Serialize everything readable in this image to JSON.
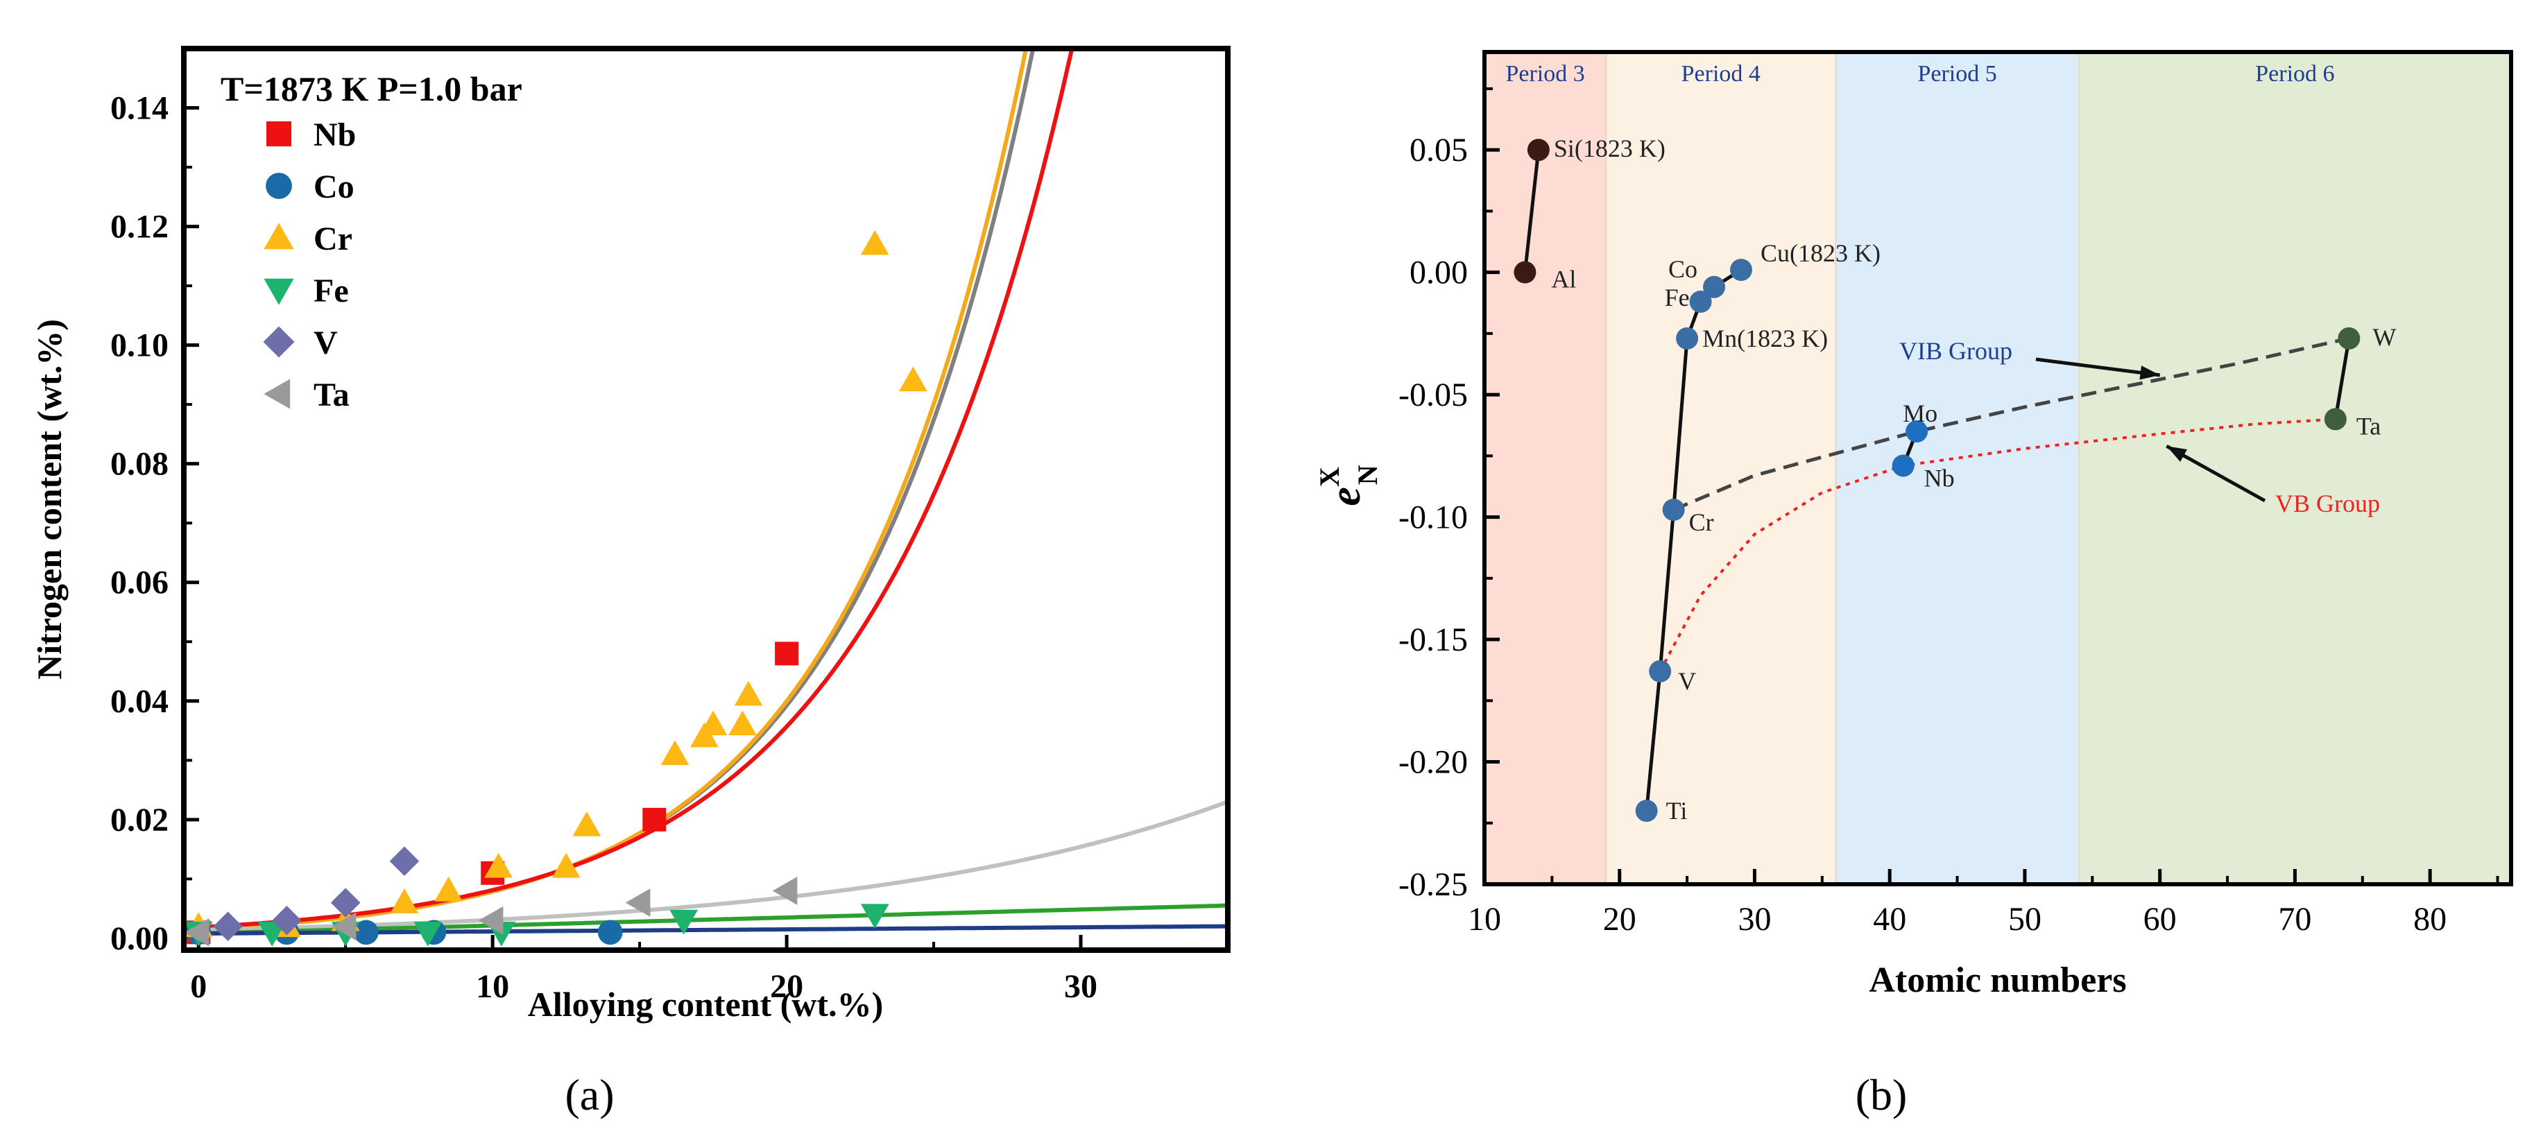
{
  "chart_data": [
    {
      "panel_label": "(a)",
      "type": "scatter",
      "title": "T=1873 K P=1.0 bar",
      "xlabel": "Alloying content (wt.%)",
      "ylabel": "Nitrogen content (wt.%)",
      "xlim": [
        -0.5,
        35
      ],
      "ylim": [
        -0.002,
        0.15
      ],
      "xticks": [
        "0",
        "10",
        "20",
        "30"
      ],
      "yticks": [
        "0.00",
        "0.02",
        "0.04",
        "0.06",
        "0.08",
        "0.10",
        "0.12",
        "0.14"
      ],
      "legend_position": "top-left",
      "series": [
        {
          "name": "Nb",
          "marker": "square",
          "color": "#ee1111",
          "x": [
            0,
            10,
            15.5,
            20
          ],
          "y": [
            0.001,
            0.011,
            0.02,
            0.048
          ]
        },
        {
          "name": "Co",
          "marker": "circle",
          "color": "#1a6aa8",
          "x": [
            0,
            3,
            5.7,
            8,
            14
          ],
          "y": [
            0.001,
            0.001,
            0.001,
            0.001,
            0.001
          ]
        },
        {
          "name": "Cr",
          "marker": "triangle-up",
          "color": "#fdb813",
          "x": [
            0,
            3,
            5,
            7,
            8.5,
            10.2,
            12.5,
            13.2,
            16.2,
            17.2,
            17.5,
            18.5,
            18.7,
            23,
            24.3
          ],
          "y": [
            0.002,
            0.002,
            0.003,
            0.006,
            0.008,
            0.012,
            0.012,
            0.019,
            0.031,
            0.034,
            0.036,
            0.036,
            0.041,
            0.117,
            0.094
          ]
        },
        {
          "name": "Fe",
          "marker": "triangle-down",
          "color": "#1db36f",
          "x": [
            0,
            2.5,
            5,
            7.8,
            10.3,
            16.5,
            23
          ],
          "y": [
            0.001,
            0.001,
            0.001,
            0.001,
            0.001,
            0.003,
            0.004
          ]
        },
        {
          "name": "V",
          "marker": "diamond",
          "color": "#6e6eaa",
          "x": [
            1,
            3,
            5,
            7
          ],
          "y": [
            0.002,
            0.003,
            0.006,
            0.013
          ]
        },
        {
          "name": "Ta",
          "marker": "triangle-left",
          "color": "#9a9a9a",
          "x": [
            0,
            5,
            10,
            15,
            20
          ],
          "y": [
            0.001,
            0.002,
            0.003,
            0.006,
            0.008
          ]
        }
      ],
      "fit_curves": [
        {
          "color": "#808080",
          "formula": "exp",
          "a": 0.0016,
          "b": 0.16
        },
        {
          "color": "#f4a91a",
          "formula": "exp",
          "a": 0.00155,
          "b": 0.1625
        },
        {
          "color": "#ee1111",
          "formula": "exp",
          "a": 0.00185,
          "b": 0.148
        },
        {
          "color": "#c0c0c0",
          "formula": "exp",
          "a": 0.0014,
          "b": 0.08
        },
        {
          "color": "#2ca02c",
          "formula": "lin",
          "a": 0.0008,
          "b": 0.000135
        },
        {
          "color": "#1f3c88",
          "formula": "lin",
          "a": 0.0008,
          "b": 3.5e-05
        }
      ]
    },
    {
      "panel_label": "(b)",
      "type": "scatter",
      "xlabel": "Atomic numbers",
      "ylabel_main": "e",
      "ylabel_sup": "X",
      "ylabel_sub": "N",
      "xlim": [
        10,
        86
      ],
      "ylim": [
        -0.25,
        0.09
      ],
      "xticks": [
        "10",
        "20",
        "30",
        "40",
        "50",
        "60",
        "70",
        "80"
      ],
      "yticks": [
        "0.05",
        "0.00",
        "-0.05",
        "-0.10",
        "-0.15",
        "-0.20",
        "-0.25"
      ],
      "period_bands": [
        {
          "label": "Period 3",
          "x0": 10,
          "x1": 19,
          "color": "#fcdcd3"
        },
        {
          "label": "Period 4",
          "x0": 19,
          "x1": 36,
          "color": "#fdf1e4"
        },
        {
          "label": "Period 5",
          "x0": 36,
          "x1": 54,
          "color": "#dcecf8"
        },
        {
          "label": "Period 6",
          "x0": 54,
          "x1": 86,
          "color": "#e2ecd5"
        }
      ],
      "points": [
        {
          "label": "Si(1823 K)",
          "x": 14,
          "y": 0.05,
          "color": "#3a1a14"
        },
        {
          "label": "Al",
          "x": 13,
          "y": 0.0,
          "color": "#3a1a14"
        },
        {
          "label": "Cu(1823 K)",
          "x": 29,
          "y": 0.001,
          "color": "#3b6ea5"
        },
        {
          "label": "Co",
          "x": 27,
          "y": -0.006,
          "color": "#3b6ea5"
        },
        {
          "label": "Fe",
          "x": 26,
          "y": -0.012,
          "color": "#3b6ea5"
        },
        {
          "label": "Mn(1823 K)",
          "x": 25,
          "y": -0.027,
          "color": "#3b6ea5"
        },
        {
          "label": "Cr",
          "x": 24,
          "y": -0.097,
          "color": "#3b6ea5"
        },
        {
          "label": "V",
          "x": 23,
          "y": -0.163,
          "color": "#3b6ea5"
        },
        {
          "label": "Ti",
          "x": 22,
          "y": -0.22,
          "color": "#3b6ea5"
        },
        {
          "label": "Mo",
          "x": 42,
          "y": -0.065,
          "color": "#1f6fc0"
        },
        {
          "label": "Nb",
          "x": 41,
          "y": -0.079,
          "color": "#1f6fc0"
        },
        {
          "label": "W",
          "x": 74,
          "y": -0.027,
          "color": "#3e5e3e"
        },
        {
          "label": "Ta",
          "x": 73,
          "y": -0.06,
          "color": "#3e5e3e"
        }
      ],
      "group_lines": [
        {
          "name": "VIB Group",
          "color": "#444444",
          "dash": "dashed",
          "label_color": "#1e3f8f",
          "x": [
            24,
            30,
            36,
            42,
            50,
            58,
            66,
            74
          ],
          "y": [
            -0.097,
            -0.083,
            -0.074,
            -0.065,
            -0.055,
            -0.046,
            -0.037,
            -0.027
          ]
        },
        {
          "name": "VB Group",
          "color": "#ee2222",
          "dash": "dotted",
          "label_color": "#ee2222",
          "x": [
            23,
            26,
            30,
            35,
            41,
            50,
            60,
            67,
            73
          ],
          "y": [
            -0.163,
            -0.132,
            -0.107,
            -0.09,
            -0.079,
            -0.072,
            -0.066,
            -0.062,
            -0.06
          ]
        }
      ]
    }
  ]
}
